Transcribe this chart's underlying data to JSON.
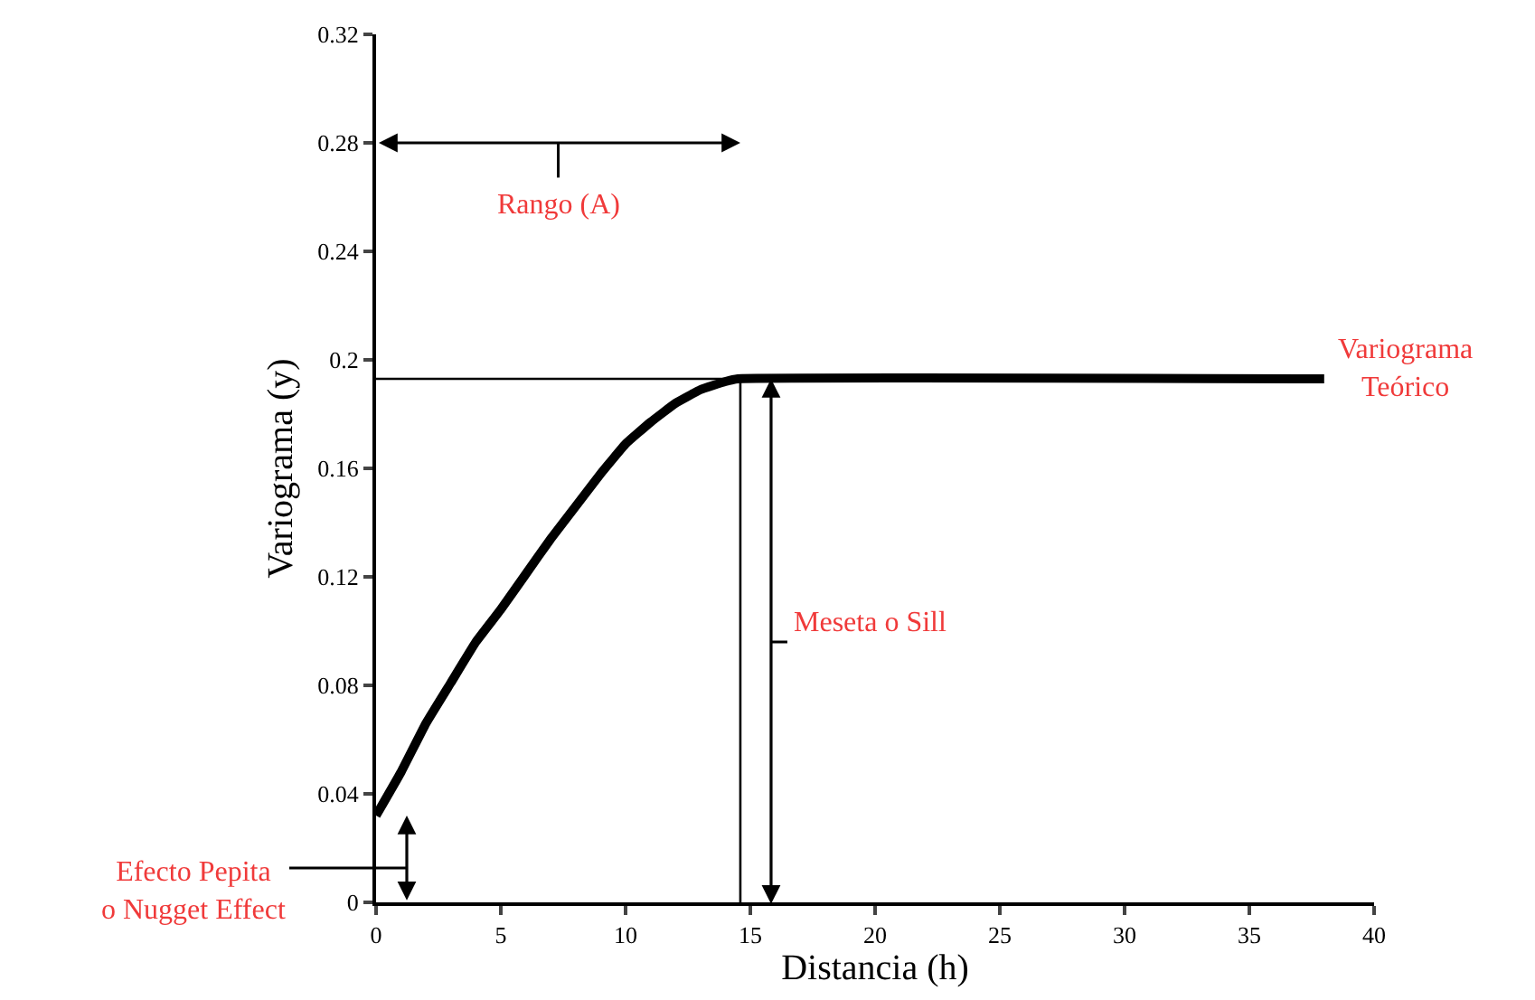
{
  "chart_data": {
    "type": "line",
    "xlabel": "Distancia (h)",
    "ylabel": "Variograma (y)",
    "x": [
      0,
      1,
      2,
      3,
      4,
      5,
      6,
      7,
      8,
      9,
      10,
      11,
      12,
      13,
      14,
      14.5,
      38
    ],
    "series": [
      {
        "color": "#000000",
        "values": [
          0.032,
          0.048,
          0.066,
          0.081,
          0.096,
          0.108,
          0.121,
          0.134,
          0.146,
          0.158,
          0.169,
          0.177,
          0.184,
          0.189,
          0.192,
          0.193,
          0.193
        ]
      }
    ],
    "xlim": [
      0,
      40
    ],
    "xticks": [
      0,
      5,
      10,
      15,
      20,
      25,
      30,
      35,
      40
    ],
    "ylim": [
      0,
      0.32
    ],
    "yticks": [
      0,
      0.04,
      0.08,
      0.12,
      0.16,
      0.2,
      0.24,
      0.28,
      0.32
    ],
    "marker": "none",
    "line_style": "solid",
    "ref_lines": [
      {
        "axis": "y",
        "value": 0.193,
        "color": "#000000"
      },
      {
        "axis": "x",
        "value": 14.6,
        "color": "#000000"
      }
    ],
    "annotations": [
      "Rango (A)",
      "Meseta o Sill",
      "Efecto Pepita\no Nugget Effect",
      {
        "text": "Variograma\nTeórico",
        "x": 38,
        "y": 0.193
      }
    ]
  }
}
